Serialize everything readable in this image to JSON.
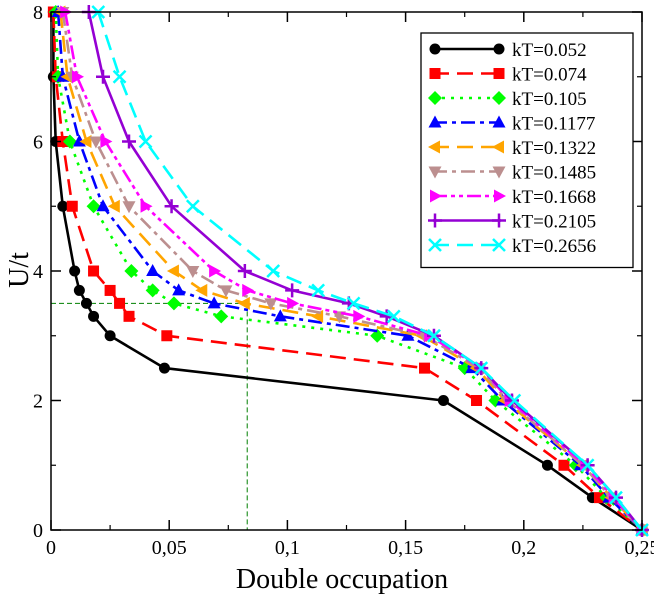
{
  "chart_data": {
    "type": "line",
    "title": "",
    "xlabel": "Double occupation",
    "ylabel": "U/t",
    "xlim": [
      0,
      0.25
    ],
    "ylim": [
      0,
      8
    ],
    "x_ticks": [
      0,
      0.05,
      0.1,
      0.15,
      0.2,
      0.25
    ],
    "x_tick_labels": [
      "0",
      "0,05",
      "0,1",
      "0,15",
      "0,2",
      "0,25"
    ],
    "y_ticks": [
      0,
      2,
      4,
      6,
      8
    ],
    "y_tick_labels": [
      "0",
      "2",
      "4",
      "6",
      "8"
    ],
    "legend_position": "top-right",
    "guide_lines": {
      "x": 0.083,
      "y": 3.5,
      "color": "#008000",
      "style": "dashed"
    },
    "series": [
      {
        "name": "kT=0.052",
        "color": "#000000",
        "marker": "circle",
        "dash": "solid",
        "x": [
          0.001,
          0.001,
          0.002,
          0.005,
          0.01,
          0.012,
          0.015,
          0.018,
          0.025,
          0.048,
          0.166,
          0.21,
          0.229,
          0.25
        ],
        "y": [
          8,
          7,
          6,
          5,
          4,
          3.7,
          3.5,
          3.3,
          3,
          2.5,
          2,
          1,
          0.5,
          0
        ]
      },
      {
        "name": "kT=0.074",
        "color": "#ff0000",
        "marker": "square",
        "dash": "long-dash",
        "x": [
          0.001,
          0.002,
          0.005,
          0.009,
          0.018,
          0.025,
          0.029,
          0.033,
          0.049,
          0.158,
          0.18,
          0.217,
          0.232,
          0.25
        ],
        "y": [
          8,
          7,
          6,
          5,
          4,
          3.7,
          3.5,
          3.3,
          3,
          2.5,
          2,
          1,
          0.5,
          0
        ]
      },
      {
        "name": "kT=0.105",
        "color": "#00ff00",
        "marker": "diamond",
        "dash": "dotted",
        "x": [
          0.002,
          0.003,
          0.008,
          0.018,
          0.034,
          0.043,
          0.052,
          0.072,
          0.138,
          0.175,
          0.188,
          0.222,
          0.235,
          0.25
        ],
        "y": [
          8,
          7,
          6,
          5,
          4,
          3.7,
          3.5,
          3.3,
          3,
          2.5,
          2,
          1,
          0.5,
          0
        ]
      },
      {
        "name": "kT=0.1177",
        "color": "#0000ff",
        "marker": "triangle-up",
        "dash": "dash-dot",
        "x": [
          0.003,
          0.005,
          0.012,
          0.022,
          0.043,
          0.054,
          0.069,
          0.097,
          0.151,
          0.178,
          0.191,
          0.224,
          0.236,
          0.25
        ],
        "y": [
          8,
          7,
          6,
          5,
          4,
          3.7,
          3.5,
          3.3,
          3,
          2.5,
          2,
          1,
          0.5,
          0
        ]
      },
      {
        "name": "kT=0.1322",
        "color": "#ffa500",
        "marker": "triangle-left",
        "dash": "long-dash",
        "x": [
          0.004,
          0.007,
          0.015,
          0.027,
          0.052,
          0.064,
          0.082,
          0.113,
          0.157,
          0.18,
          0.192,
          0.225,
          0.237,
          0.25
        ],
        "y": [
          8,
          7,
          6,
          5,
          4,
          3.7,
          3.5,
          3.3,
          3,
          2.5,
          2,
          1,
          0.5,
          0
        ]
      },
      {
        "name": "kT=0.1485",
        "color": "#bc8f8f",
        "marker": "triangle-down",
        "dash": "dash-dot",
        "x": [
          0.005,
          0.009,
          0.019,
          0.033,
          0.06,
          0.074,
          0.093,
          0.122,
          0.158,
          0.181,
          0.193,
          0.225,
          0.237,
          0.25
        ],
        "y": [
          8,
          7,
          6,
          5,
          4,
          3.7,
          3.5,
          3.3,
          3,
          2.5,
          2,
          1,
          0.5,
          0
        ]
      },
      {
        "name": "kT=0.1668",
        "color": "#ff00ff",
        "marker": "triangle-right",
        "dash": "dash-dot-dot",
        "x": [
          0.006,
          0.011,
          0.023,
          0.04,
          0.069,
          0.083,
          0.102,
          0.13,
          0.16,
          0.182,
          0.194,
          0.226,
          0.238,
          0.25
        ],
        "y": [
          8,
          7,
          6,
          5,
          4,
          3.7,
          3.5,
          3.3,
          3,
          2.5,
          2,
          1,
          0.5,
          0
        ]
      },
      {
        "name": "kT=0.2105",
        "color": "#9400d3",
        "marker": "plus",
        "dash": "solid",
        "x": [
          0.016,
          0.022,
          0.033,
          0.051,
          0.082,
          0.102,
          0.126,
          0.142,
          0.162,
          0.182,
          0.195,
          0.227,
          0.239,
          0.25
        ],
        "y": [
          8,
          7,
          6,
          5,
          4,
          3.7,
          3.5,
          3.3,
          3,
          2.5,
          2,
          1,
          0.5,
          0
        ]
      },
      {
        "name": "kT=0.2656",
        "color": "#00ffff",
        "marker": "cross",
        "dash": "long-dash",
        "x": [
          0.02,
          0.029,
          0.04,
          0.06,
          0.094,
          0.113,
          0.128,
          0.145,
          0.162,
          0.182,
          0.196,
          0.227,
          0.239,
          0.25
        ],
        "y": [
          8,
          7,
          6,
          5,
          4,
          3.7,
          3.5,
          3.3,
          3,
          2.5,
          2,
          1,
          0.5,
          0
        ]
      }
    ]
  }
}
